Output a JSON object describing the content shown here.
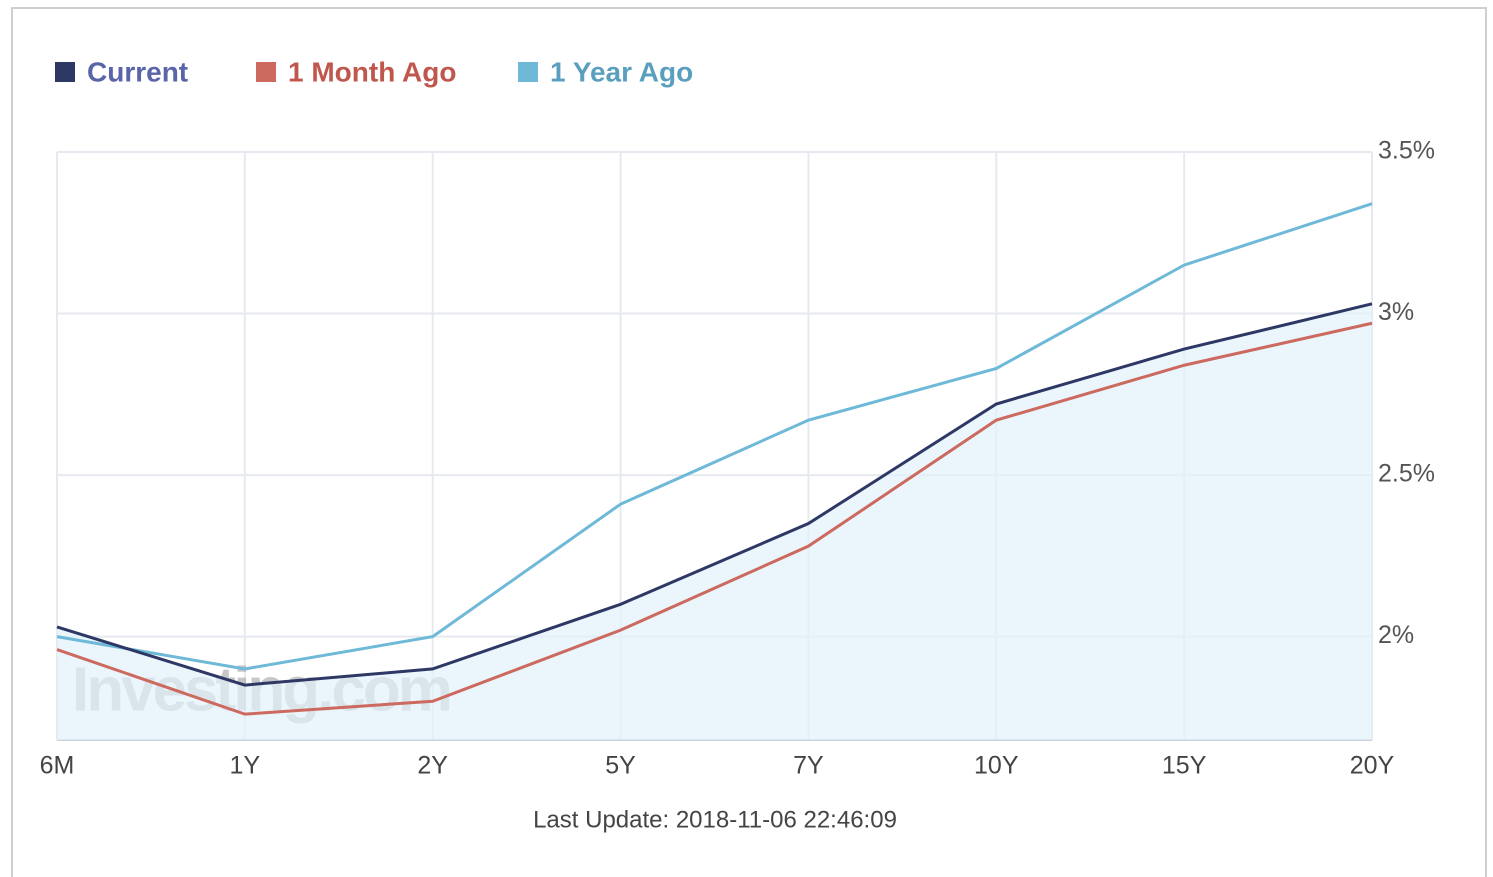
{
  "chart_data": {
    "type": "line",
    "categories": [
      "6M",
      "1Y",
      "2Y",
      "5Y",
      "7Y",
      "10Y",
      "15Y",
      "20Y"
    ],
    "series": [
      {
        "name": "Current",
        "color": "#2e3865",
        "values": [
          2.03,
          1.85,
          1.9,
          2.1,
          2.35,
          2.72,
          2.89,
          3.03
        ]
      },
      {
        "name": "1 Month Ago",
        "color": "#cc6a5f",
        "values": [
          1.96,
          1.76,
          1.8,
          2.02,
          2.28,
          2.67,
          2.84,
          2.97
        ]
      },
      {
        "name": "1 Year Ago",
        "color": "#6fb9d8",
        "values": [
          2.0,
          1.9,
          2.0,
          2.41,
          2.67,
          2.83,
          3.15,
          3.34
        ]
      }
    ],
    "ylim": [
      1.68,
      3.5
    ],
    "yticks": [
      {
        "value": 2,
        "label": "2%"
      },
      {
        "value": 2.5,
        "label": "2.5%"
      },
      {
        "value": 3,
        "label": "3%"
      },
      {
        "value": 3.5,
        "label": "3.5%"
      }
    ],
    "grid": true,
    "area_series": "Current",
    "watermark": "Investing.com",
    "footer": "Last Update: 2018-11-06 22:46:09"
  }
}
